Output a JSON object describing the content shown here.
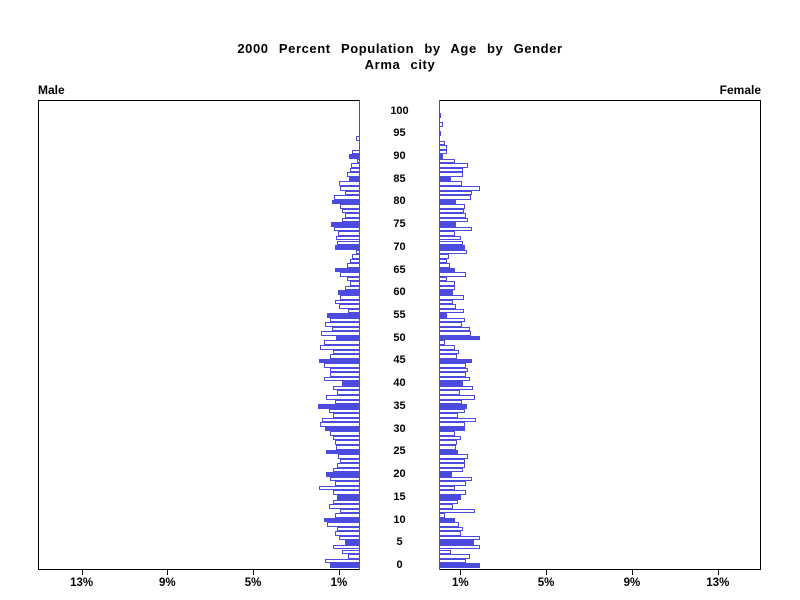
{
  "title": {
    "line1": "2000 Percent Population by Age by Gender",
    "line2": "Arma city"
  },
  "panels": {
    "left_label": "Male",
    "right_label": "Female"
  },
  "colors": {
    "bar_blue": "#4b4be0",
    "axis_black": "#000000",
    "background": "#ffffff"
  },
  "axis": {
    "age_labels": [
      0,
      5,
      10,
      15,
      20,
      25,
      30,
      35,
      40,
      45,
      50,
      55,
      60,
      65,
      70,
      75,
      80,
      85,
      90,
      95,
      100
    ],
    "pct_ticks": [
      {
        "side": "left",
        "value": 13,
        "label": "13%"
      },
      {
        "side": "left",
        "value": 9,
        "label": "9%"
      },
      {
        "side": "left",
        "value": 5,
        "label": "5%"
      },
      {
        "side": "left",
        "value": 1,
        "label": "1%"
      },
      {
        "side": "right",
        "value": 1,
        "label": "1%"
      },
      {
        "side": "right",
        "value": 5,
        "label": "5%"
      },
      {
        "side": "right",
        "value": 9,
        "label": "9%"
      },
      {
        "side": "right",
        "value": 13,
        "label": "13%"
      }
    ]
  },
  "chart_data": {
    "type": "bar",
    "subtype": "population-pyramid",
    "title": "2000 Percent Population by Age by Gender",
    "subtitle": "Arma city",
    "x_unit": "percent of population",
    "x_range_each_side": [
      0,
      15
    ],
    "age_min": 0,
    "age_max": 100,
    "bar_style_rule": "ages divisible by 5 drawn solid blue; other ages hollow with blue outline",
    "legend_position": "none",
    "grid": false,
    "series": [
      {
        "name": "Male",
        "direction": "left",
        "values": [
          1.4,
          1.65,
          0.6,
          0.85,
          1.3,
          0.7,
          1.0,
          1.2,
          1.1,
          1.55,
          1.7,
          1.2,
          0.95,
          1.45,
          1.3,
          1.1,
          1.3,
          1.95,
          1.2,
          1.4,
          1.6,
          1.3,
          1.1,
          0.95,
          1.05,
          1.6,
          1.15,
          1.2,
          1.3,
          1.4,
          1.65,
          1.9,
          1.8,
          1.3,
          1.45,
          2.0,
          1.2,
          1.6,
          1.1,
          1.3,
          0.85,
          1.7,
          1.43,
          1.43,
          1.7,
          1.95,
          1.43,
          1.28,
          1.87,
          1.68,
          1.12,
          1.84,
          1.32,
          1.65,
          1.4,
          1.55,
          0.6,
          1.0,
          1.17,
          0.93,
          1.04,
          0.7,
          0.5,
          0.62,
          0.97,
          1.17,
          0.62,
          0.5,
          0.39,
          0.2,
          1.2,
          1.09,
          1.13,
          1.04,
          1.25,
          1.35,
          0.85,
          0.73,
          0.85,
          0.97,
          1.32,
          1.24,
          0.7,
          0.96,
          1.01,
          0.55,
          0.62,
          0.47,
          0.42,
          0.15,
          0.54,
          0.39,
          0,
          0,
          0.19,
          0,
          0,
          0,
          0,
          0,
          0
        ]
      },
      {
        "name": "Female",
        "direction": "right",
        "values": [
          1.9,
          1.27,
          1.46,
          0.58,
          1.9,
          1.62,
          1.9,
          1.03,
          1.12,
          0.96,
          0.76,
          0.3,
          1.7,
          0.65,
          0.89,
          1.03,
          1.27,
          0.76,
          1.27,
          1.54,
          0.61,
          1.12,
          1.23,
          1.23,
          1.38,
          0.87,
          0.81,
          0.84,
          1.03,
          0.76,
          1.23,
          1.2,
          1.74,
          0.87,
          1.23,
          1.31,
          1.07,
          1.7,
          1.0,
          1.59,
          1.12,
          1.43,
          1.27,
          1.38,
          1.27,
          1.54,
          0.84,
          0.92,
          0.76,
          0.3,
          1.9,
          1.51,
          1.46,
          1.07,
          1.2,
          0.37,
          1.15,
          0.79,
          0.65,
          1.15,
          0.65,
          0.76,
          0.73,
          0.37,
          1.27,
          0.76,
          0.53,
          0.37,
          0.45,
          1.31,
          1.2,
          1.12,
          1.03,
          0.76,
          1.54,
          0.79,
          1.35,
          1.26,
          1.15,
          1.2,
          0.79,
          1.5,
          1.54,
          1.93,
          1.07,
          0.58,
          1.12,
          1.12,
          1.35,
          0.76,
          0.2,
          0.4,
          0.4,
          0.3,
          0,
          0.12,
          0,
          0.2,
          0,
          0.1,
          0
        ]
      }
    ]
  }
}
